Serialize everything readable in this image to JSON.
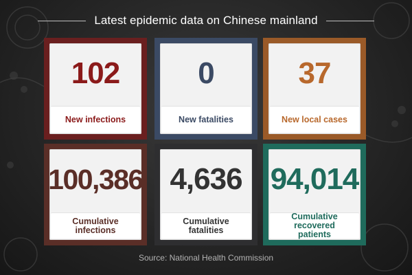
{
  "header": {
    "title": "Latest epidemic data on Chinese mainland"
  },
  "cards": [
    {
      "value": "102",
      "label": "New infections",
      "value_color": "#8b1a1a",
      "label_color": "#8b1a1a"
    },
    {
      "value": "0",
      "label": "New fatalities",
      "value_color": "#3b4a64",
      "label_color": "#3b4a64"
    },
    {
      "value": "37",
      "label": "New local cases",
      "value_color": "#b8682c",
      "label_color": "#b8682c"
    },
    {
      "value": "100,386",
      "label": "Cumulative infections",
      "value_color": "#5a2e27",
      "label_color": "#5a2e27"
    },
    {
      "value": "4,636",
      "label": "Cumulative fatalities",
      "value_color": "#333333",
      "label_color": "#333333"
    },
    {
      "value": "94,014",
      "label": "Cumulative recovered patients",
      "value_color": "#1f6b5c",
      "label_color": "#1f6b5c"
    }
  ],
  "footer": {
    "source": "Source: National Health Commission"
  }
}
